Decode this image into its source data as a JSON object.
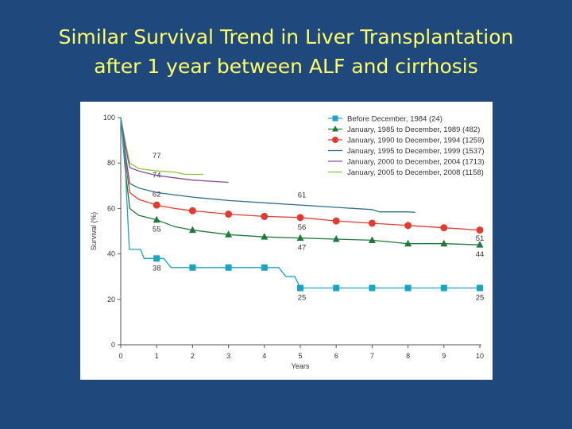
{
  "slide": {
    "title_line1": "Similar Survival Trend in Liver Transplantation",
    "title_line2": "after 1 year between ALF and cirrhosis"
  },
  "chart_data": {
    "type": "line",
    "title": "",
    "xlabel": "Years",
    "ylabel": "Survival (%)",
    "xlim": [
      0,
      10
    ],
    "ylim": [
      0,
      100
    ],
    "x_ticks": [
      0,
      1,
      2,
      3,
      4,
      5,
      6,
      7,
      8,
      9,
      10
    ],
    "y_ticks": [
      0,
      20,
      40,
      60,
      80,
      100
    ],
    "grid": false,
    "legend_position": "top-right",
    "series": [
      {
        "name": "Before December, 1984 (24)",
        "color": "#1ba3c6",
        "marker": "square",
        "points": [
          [
            0,
            100
          ],
          [
            0.12,
            80
          ],
          [
            0.24,
            42
          ],
          [
            0.55,
            42
          ],
          [
            0.65,
            38
          ],
          [
            1,
            38
          ],
          [
            1.2,
            38
          ],
          [
            1.4,
            34
          ],
          [
            2,
            34
          ],
          [
            3,
            34
          ],
          [
            4,
            34
          ],
          [
            4.4,
            34
          ],
          [
            4.6,
            30
          ],
          [
            4.85,
            30
          ],
          [
            5,
            25
          ],
          [
            6,
            25
          ],
          [
            7,
            25
          ],
          [
            8,
            25
          ],
          [
            9,
            25
          ],
          [
            10,
            25
          ]
        ],
        "markers_x": [
          1,
          2,
          3,
          4,
          5,
          6,
          7,
          8,
          9,
          10
        ],
        "markers_y": [
          38,
          34,
          34,
          34,
          25,
          25,
          25,
          25,
          25,
          25
        ]
      },
      {
        "name": "January, 1985 to December, 1989 (482)",
        "color": "#1e7a3c",
        "marker": "triangle",
        "points": [
          [
            0,
            100
          ],
          [
            0.12,
            78
          ],
          [
            0.25,
            60
          ],
          [
            0.5,
            57
          ],
          [
            1,
            55
          ],
          [
            1.5,
            52
          ],
          [
            2,
            50.5
          ],
          [
            3,
            48.5
          ],
          [
            4,
            47.5
          ],
          [
            5,
            47
          ],
          [
            6,
            46.5
          ],
          [
            7,
            46
          ],
          [
            8,
            44.5
          ],
          [
            9,
            44.5
          ],
          [
            10,
            44
          ]
        ],
        "markers_x": [
          1,
          2,
          3,
          4,
          5,
          6,
          7,
          8,
          9,
          10
        ],
        "markers_y": [
          55,
          50.5,
          48.5,
          47.5,
          47,
          46.5,
          46,
          44.5,
          44.5,
          44
        ]
      },
      {
        "name": "January, 1990 to December, 1994 (1259)",
        "color": "#e03c31",
        "marker": "circle",
        "points": [
          [
            0,
            100
          ],
          [
            0.12,
            82
          ],
          [
            0.25,
            67
          ],
          [
            0.5,
            64
          ],
          [
            1,
            61.5
          ],
          [
            1.5,
            60
          ],
          [
            2,
            59
          ],
          [
            3,
            57.5
          ],
          [
            4,
            56.5
          ],
          [
            5,
            56
          ],
          [
            6,
            54.5
          ],
          [
            7,
            53.5
          ],
          [
            8,
            52.5
          ],
          [
            9,
            51.5
          ],
          [
            10,
            50.5
          ]
        ],
        "markers_x": [
          1,
          2,
          3,
          4,
          5,
          6,
          7,
          8,
          9,
          10
        ],
        "markers_y": [
          61.5,
          59,
          57.5,
          56.5,
          56,
          54.5,
          53.5,
          52.5,
          51.5,
          50.5
        ]
      },
      {
        "name": "January, 1995 to December, 1999 (1537)",
        "color": "#2c6e8c",
        "marker": "none",
        "points": [
          [
            0,
            100
          ],
          [
            0.12,
            85
          ],
          [
            0.25,
            71
          ],
          [
            0.5,
            69
          ],
          [
            1,
            67
          ],
          [
            2,
            65
          ],
          [
            3,
            63.5
          ],
          [
            4,
            62.5
          ],
          [
            5,
            61.5
          ],
          [
            6,
            60.5
          ],
          [
            7,
            59.5
          ],
          [
            7.2,
            58.5
          ],
          [
            8,
            58.5
          ],
          [
            8.2,
            58.3
          ]
        ]
      },
      {
        "name": "January, 2000 to December, 2004 (1713)",
        "color": "#8b4a9c",
        "marker": "none",
        "points": [
          [
            0,
            100
          ],
          [
            0.12,
            88
          ],
          [
            0.25,
            78
          ],
          [
            0.5,
            76.5
          ],
          [
            1,
            74.5
          ],
          [
            1.5,
            73.5
          ],
          [
            2,
            72.5
          ],
          [
            2.5,
            72
          ],
          [
            3,
            71.5
          ]
        ]
      },
      {
        "name": "January, 2005 to December, 2008 (1158)",
        "color": "#8cc63f",
        "marker": "none",
        "points": [
          [
            0,
            100
          ],
          [
            0.12,
            90
          ],
          [
            0.25,
            80
          ],
          [
            0.5,
            77.5
          ],
          [
            1,
            76.5
          ],
          [
            1.5,
            76
          ],
          [
            1.8,
            75
          ],
          [
            2,
            75
          ],
          [
            2.3,
            75
          ]
        ]
      }
    ],
    "annotations": [
      {
        "text": "77",
        "x": 1,
        "y": 77
      },
      {
        "text": "74",
        "x": 1,
        "y": 74
      },
      {
        "text": "62",
        "x": 1,
        "y": 62
      },
      {
        "text": "55",
        "x": 1,
        "y": 55
      },
      {
        "text": "38",
        "x": 1,
        "y": 38
      },
      {
        "text": "61",
        "x": 5,
        "y": 61
      },
      {
        "text": "56",
        "x": 5,
        "y": 56
      },
      {
        "text": "47",
        "x": 5,
        "y": 47
      },
      {
        "text": "25",
        "x": 5,
        "y": 25
      },
      {
        "text": "51",
        "x": 10,
        "y": 51
      },
      {
        "text": "44",
        "x": 10,
        "y": 44
      },
      {
        "text": "25",
        "x": 10,
        "y": 25
      }
    ]
  }
}
